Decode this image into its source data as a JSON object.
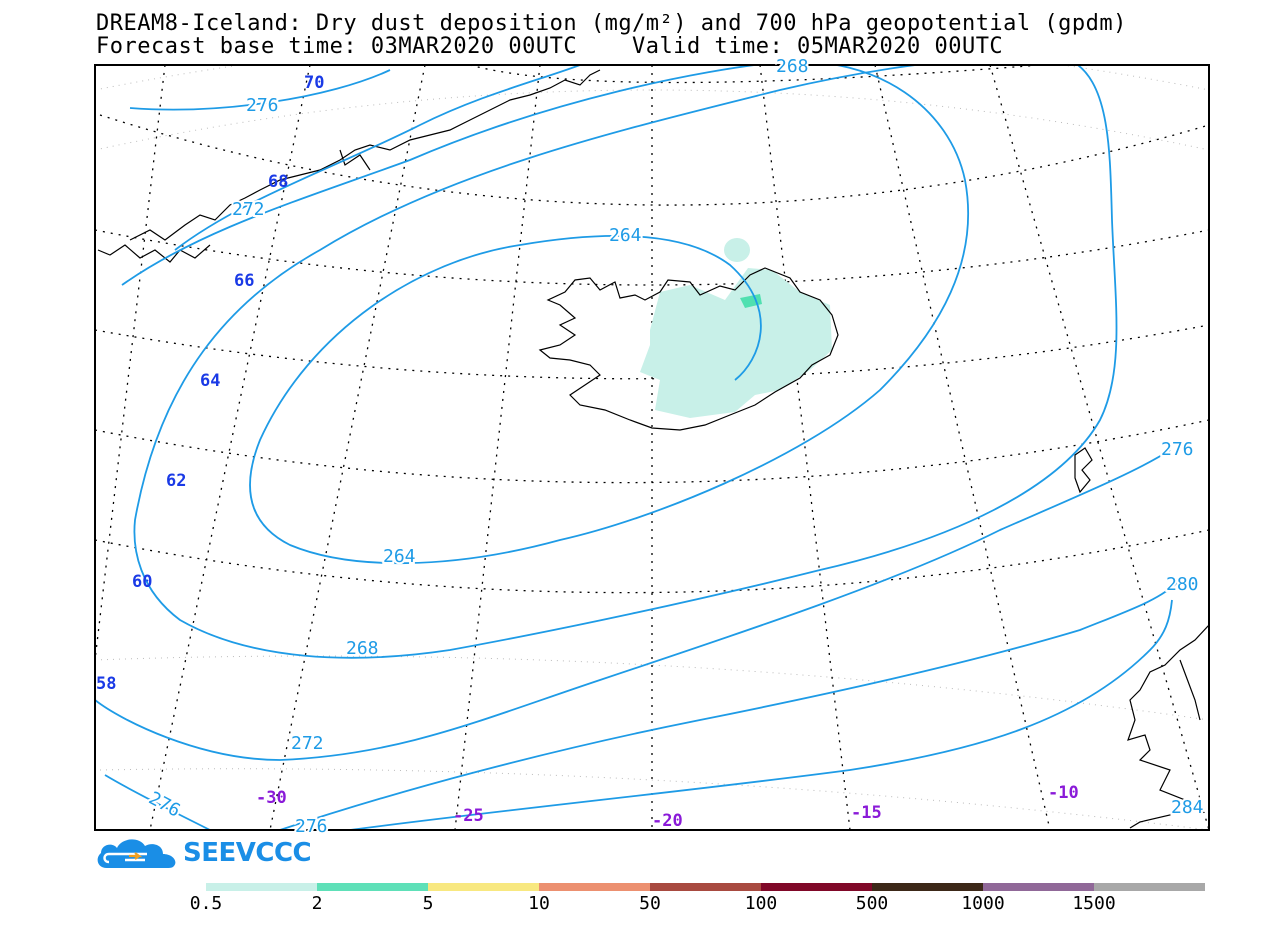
{
  "header": {
    "line1": "DREAM8-Iceland: Dry dust deposition (mg/m²) and 700 hPa geopotential (gpdm)",
    "line2": "Forecast base time: 03MAR2020 00UTC    Valid time: 05MAR2020 00UTC"
  },
  "map": {
    "lat_labels": [
      "70",
      "68",
      "66",
      "64",
      "62",
      "60",
      "58"
    ],
    "lon_labels": [
      "-30",
      "-25",
      "-20",
      "-15",
      "-10"
    ],
    "contour_labels": [
      "276",
      "272",
      "264",
      "264",
      "268",
      "272",
      "276",
      "276",
      "268",
      "276",
      "280",
      "284"
    ],
    "colors": {
      "contour": "#1e9be6",
      "lat_label": "#1a3ae6",
      "lon_label": "#8a1ad8",
      "coast": "#000000",
      "dust_low": "#c8f0e8",
      "dust_mid": "#50e0b0"
    }
  },
  "logo": {
    "text": "SEEVCCC",
    "icon": "cloud-arrow-icon"
  },
  "colorbar": {
    "colors": [
      "#c8f0e8",
      "#5ee0b8",
      "#f8e880",
      "#ec9070",
      "#a84a40",
      "#800828",
      "#3c2818",
      "#906898",
      "#a8a8a8"
    ],
    "ticks": [
      "0.5",
      "2",
      "5",
      "10",
      "50",
      "100",
      "500",
      "1000",
      "1500"
    ]
  }
}
